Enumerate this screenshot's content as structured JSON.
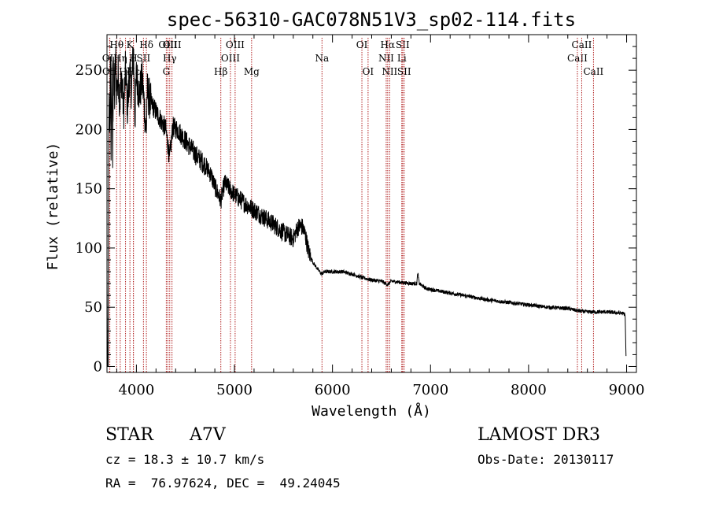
{
  "chart_data": {
    "type": "line",
    "title": "spec-56310-GAC078N51V3_sp02-114.fits",
    "xlabel": "Wavelength (Å)",
    "ylabel": "Flux (relative)",
    "xlim": [
      3700,
      9100
    ],
    "ylim": [
      -5,
      280
    ],
    "x_ticks": [
      4000,
      5000,
      6000,
      7000,
      8000,
      9000
    ],
    "y_ticks": [
      0,
      50,
      100,
      150,
      200,
      250
    ],
    "spectrum_anchor_points": [
      [
        3700,
        80
      ],
      [
        3705,
        0
      ],
      [
        3712,
        0
      ],
      [
        3718,
        190
      ],
      [
        3722,
        230
      ],
      [
        3728,
        198
      ],
      [
        3735,
        260
      ],
      [
        3742,
        175
      ],
      [
        3750,
        262
      ],
      [
        3758,
        170
      ],
      [
        3766,
        268
      ],
      [
        3776,
        220
      ],
      [
        3788,
        262
      ],
      [
        3800,
        230
      ],
      [
        3815,
        248
      ],
      [
        3830,
        222
      ],
      [
        3850,
        246
      ],
      [
        3870,
        214
      ],
      [
        3890,
        252
      ],
      [
        3910,
        216
      ],
      [
        3930,
        248
      ],
      [
        3950,
        232
      ],
      [
        3970,
        270
      ],
      [
        3985,
        208
      ],
      [
        4000,
        246
      ],
      [
        4030,
        230
      ],
      [
        4060,
        242
      ],
      [
        4090,
        210
      ],
      [
        4100,
        195
      ],
      [
        4110,
        232
      ],
      [
        4150,
        222
      ],
      [
        4200,
        215
      ],
      [
        4250,
        208
      ],
      [
        4300,
        200
      ],
      [
        4340,
        175
      ],
      [
        4370,
        202
      ],
      [
        4420,
        200
      ],
      [
        4480,
        193
      ],
      [
        4550,
        185
      ],
      [
        4620,
        177
      ],
      [
        4700,
        170
      ],
      [
        4760,
        162
      ],
      [
        4800,
        152
      ],
      [
        4861,
        140
      ],
      [
        4900,
        155
      ],
      [
        4950,
        150
      ],
      [
        5000,
        145
      ],
      [
        5100,
        138
      ],
      [
        5200,
        132
      ],
      [
        5300,
        126
      ],
      [
        5400,
        120
      ],
      [
        5500,
        113
      ],
      [
        5600,
        108
      ],
      [
        5650,
        118
      ],
      [
        5690,
        118
      ],
      [
        5720,
        112
      ],
      [
        5760,
        96
      ],
      [
        5800,
        88
      ],
      [
        5850,
        82
      ],
      [
        5890,
        78
      ],
      [
        5920,
        80
      ],
      [
        6000,
        80
      ],
      [
        6100,
        80
      ],
      [
        6200,
        78
      ],
      [
        6300,
        75
      ],
      [
        6400,
        73
      ],
      [
        6500,
        72
      ],
      [
        6563,
        69
      ],
      [
        6600,
        72
      ],
      [
        6700,
        71
      ],
      [
        6800,
        70
      ],
      [
        6860,
        70
      ],
      [
        6870,
        79
      ],
      [
        6885,
        70
      ],
      [
        6950,
        66
      ],
      [
        7000,
        65
      ],
      [
        7200,
        62
      ],
      [
        7400,
        59
      ],
      [
        7600,
        56
      ],
      [
        7800,
        54
      ],
      [
        8000,
        52
      ],
      [
        8200,
        50
      ],
      [
        8400,
        49
      ],
      [
        8500,
        47
      ],
      [
        8600,
        46
      ],
      [
        8800,
        46
      ],
      [
        8950,
        45
      ],
      [
        8985,
        44
      ],
      [
        8995,
        5
      ]
    ],
    "spectral_lines": [
      {
        "name": "Hθ",
        "wavelength": 3798,
        "row": 1
      },
      {
        "name": "OII",
        "wavelength": 3727,
        "row": 2
      },
      {
        "name": "OII",
        "wavelength": 3729,
        "row": 3
      },
      {
        "name": "Hη",
        "wavelength": 3835,
        "row": 2
      },
      {
        "name": "Hζ",
        "wavelength": 3889,
        "row": 3
      },
      {
        "name": "K",
        "wavelength": 3934,
        "row": 1
      },
      {
        "name": "H",
        "wavelength": 3969,
        "row": 2
      },
      {
        "name": "Hε",
        "wavelength": 3970,
        "row": 3
      },
      {
        "name": "SII",
        "wavelength": 4072,
        "row": 2
      },
      {
        "name": "Hδ",
        "wavelength": 4102,
        "row": 1
      },
      {
        "name": "OIII",
        "wavelength": 4321,
        "row": 1
      },
      {
        "name": "Hγ",
        "wavelength": 4340,
        "row": 2
      },
      {
        "name": "G",
        "wavelength": 4305,
        "row": 3
      },
      {
        "name": "OIII",
        "wavelength": 4363,
        "row": 1
      },
      {
        "name": "Hβ",
        "wavelength": 4861,
        "row": 3
      },
      {
        "name": "OIII",
        "wavelength": 4959,
        "row": 2
      },
      {
        "name": "OIII",
        "wavelength": 5007,
        "row": 1
      },
      {
        "name": "Mg",
        "wavelength": 5175,
        "row": 3
      },
      {
        "name": "Na",
        "wavelength": 5893,
        "row": 2
      },
      {
        "name": "OI",
        "wavelength": 6300,
        "row": 1
      },
      {
        "name": "OI",
        "wavelength": 6363,
        "row": 3
      },
      {
        "name": "NII",
        "wavelength": 6548,
        "row": 2
      },
      {
        "name": "Hα",
        "wavelength": 6563,
        "row": 1
      },
      {
        "name": "NII",
        "wavelength": 6583,
        "row": 3
      },
      {
        "name": "SII",
        "wavelength": 6716,
        "row": 1
      },
      {
        "name": "Li",
        "wavelength": 6707,
        "row": 2
      },
      {
        "name": "SII",
        "wavelength": 6731,
        "row": 3
      },
      {
        "name": "CaII",
        "wavelength": 8498,
        "row": 2
      },
      {
        "name": "CaII",
        "wavelength": 8542,
        "row": 1
      },
      {
        "name": "CaII",
        "wavelength": 8662,
        "row": 3
      }
    ]
  },
  "info": {
    "object_type": "STAR",
    "spectral_class": "A7V",
    "survey": "LAMOST DR3",
    "redshift_text": "cz = 18.3 ± 10.7 km/s",
    "obs_date_text": "Obs-Date: 20130117",
    "coords_text": "RA =  76.97624, DEC =  49.24045"
  },
  "colors": {
    "line_marker": "#b22222",
    "spectrum": "#000000",
    "background": "#ffffff"
  }
}
